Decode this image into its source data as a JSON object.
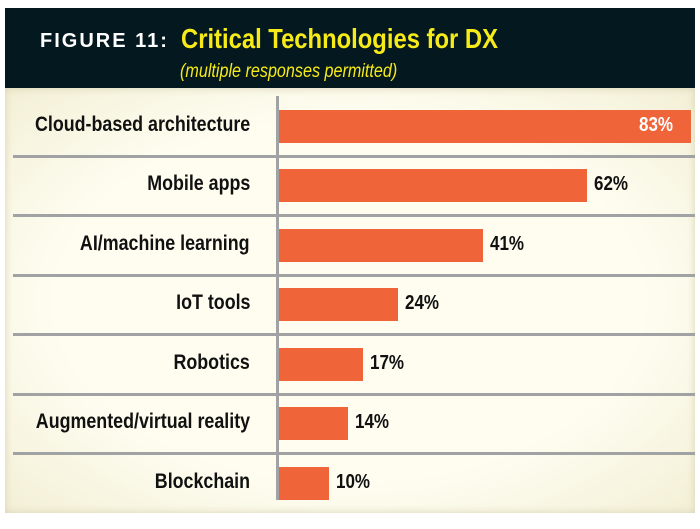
{
  "header": {
    "figure": "FIGURE 11:",
    "title": "Critical Technologies for DX",
    "subtitle": "(multiple responses permitted)"
  },
  "colors": {
    "bar": "#f0643a",
    "header_bg": "#041820",
    "title": "#f6ea18"
  },
  "chart_data": {
    "type": "bar",
    "orientation": "horizontal",
    "title": "Critical Technologies for DX",
    "subtitle": "(multiple responses permitted)",
    "categories": [
      "Cloud-based architecture",
      "Mobile apps",
      "AI/machine learning",
      "IoT tools",
      "Robotics",
      "Augmented/virtual reality",
      "Blockchain"
    ],
    "values": [
      83,
      62,
      41,
      24,
      17,
      14,
      10
    ],
    "labels": [
      "83%",
      "62%",
      "41%",
      "24%",
      "17%",
      "14%",
      "10%"
    ],
    "xlim": [
      0,
      83
    ],
    "grid": false
  }
}
